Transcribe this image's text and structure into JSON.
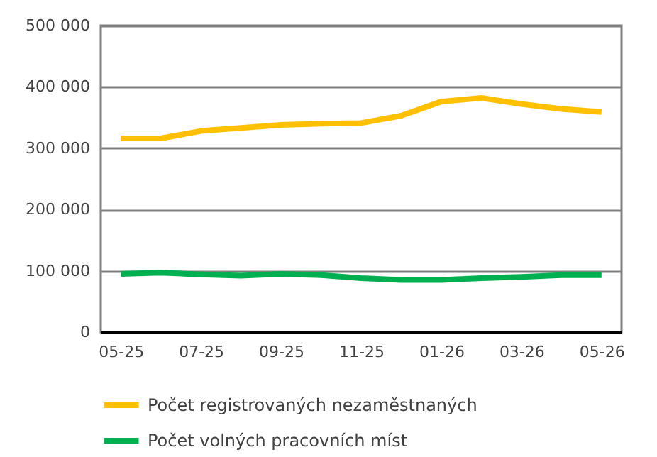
{
  "chart_data": {
    "type": "line",
    "categories": [
      "05-25",
      null,
      "07-25",
      null,
      "09-25",
      null,
      "11-25",
      null,
      "01-26",
      null,
      "03-26",
      null,
      "05-26"
    ],
    "series": [
      {
        "name": "Počet registrovaných nezaměstnaných",
        "color": "#ffc000",
        "values": [
          316000,
          316000,
          328000,
          333000,
          338000,
          340000,
          341000,
          353000,
          376000,
          382000,
          372000,
          364000,
          359000
        ]
      },
      {
        "name": "Počet volných pracovních míst",
        "color": "#00b050",
        "values": [
          95000,
          97000,
          94000,
          92000,
          95000,
          93000,
          88000,
          85000,
          85000,
          88000,
          90000,
          93000,
          93000
        ]
      }
    ],
    "ylim": [
      0,
      500000
    ],
    "yticks": [
      {
        "value": 0,
        "label": "0"
      },
      {
        "value": 100000,
        "label": "100 000"
      },
      {
        "value": 200000,
        "label": "200 000"
      },
      {
        "value": 300000,
        "label": "300 000"
      },
      {
        "value": 400000,
        "label": "400 000"
      },
      {
        "value": 500000,
        "label": "500 000"
      }
    ],
    "grid": "y",
    "legend": "bottom",
    "marker": "none",
    "line_style": "solid"
  }
}
